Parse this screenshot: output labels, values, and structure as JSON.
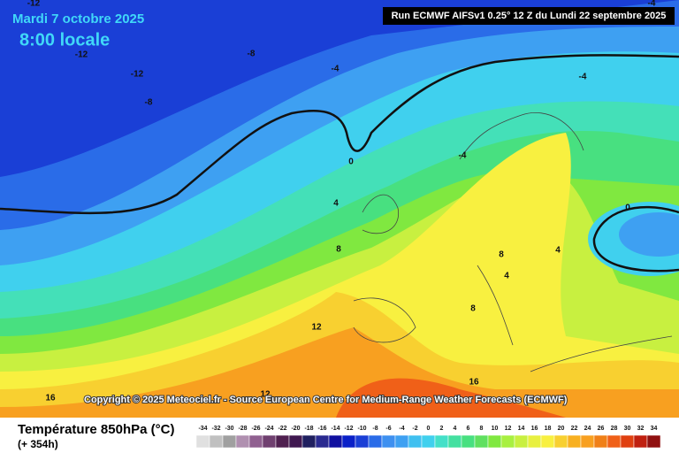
{
  "header": {
    "date": "Mardi 7 octobre 2025",
    "time": "8:00 locale",
    "run": "Run ECMWF AIFSv1 0.25° 12 Z du Lundi 22 septembre 2025"
  },
  "contour_labels": [
    "-12",
    "-12",
    "-8",
    "-12",
    "-8",
    "-4",
    "-4",
    "-4",
    "-4",
    "0",
    "0",
    "4",
    "8",
    "4",
    "8",
    "4",
    "8",
    "12",
    "16",
    "12",
    "16"
  ],
  "copyright": "Copyright © 2025 Meteociel.fr - Source European Centre for Medium-Range Weather Forecasts (ECMWF)",
  "legend": {
    "title": "Température 850hPa (°C)",
    "lead_time": "(+ 354h)",
    "scale": {
      "values": [
        -34,
        -32,
        -30,
        -28,
        -26,
        -24,
        -22,
        -20,
        -18,
        -16,
        -14,
        -12,
        -10,
        -8,
        -6,
        -4,
        -2,
        0,
        2,
        4,
        6,
        8,
        10,
        12,
        14,
        16,
        18,
        20,
        22,
        24,
        26,
        28,
        30,
        32,
        34
      ],
      "colors": [
        "#e0e0e0",
        "#c0c0c0",
        "#a0a0a0",
        "#b090b0",
        "#906090",
        "#704070",
        "#502050",
        "#401850",
        "#202060",
        "#2a2a90",
        "#1010a0",
        "#0a20c8",
        "#1a3fd6",
        "#2a6ce8",
        "#3e90f0",
        "#3ea0f2",
        "#40c0f0",
        "#40d0ee",
        "#44e0c8",
        "#44e0a0",
        "#48e080",
        "#60e060",
        "#80e840",
        "#a8f040",
        "#c8f040",
        "#e8f040",
        "#f8f040",
        "#f8d030",
        "#f8b020",
        "#f8a020",
        "#f08018",
        "#f06018",
        "#e04010",
        "#c02010",
        "#901010"
      ]
    }
  }
}
